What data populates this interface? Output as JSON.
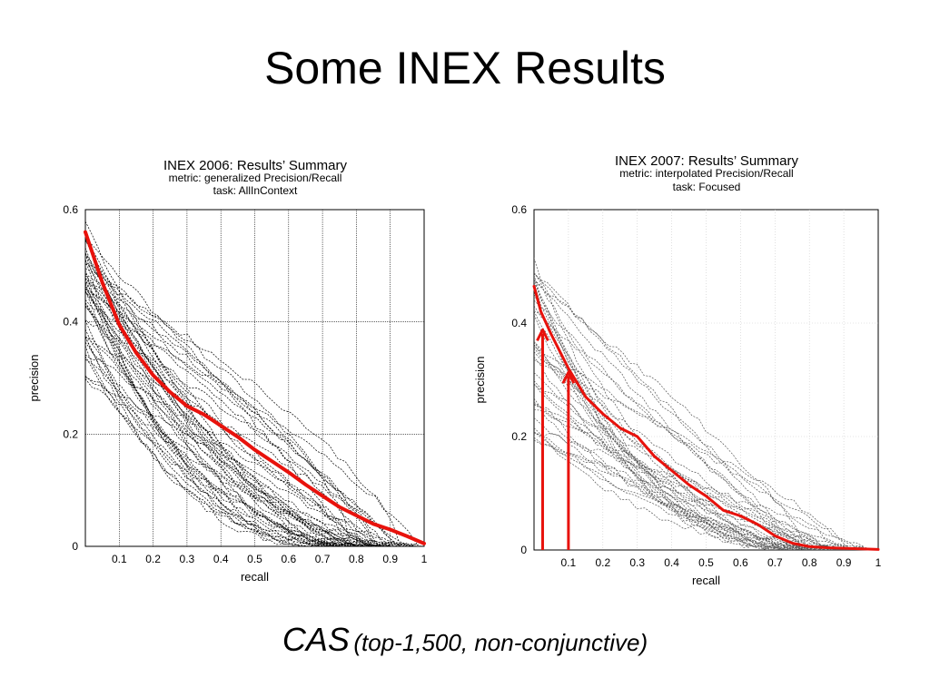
{
  "slide": {
    "title": "Some INEX Results",
    "caption_main": "CAS",
    "caption_sub": "(top-1,500, non-conjunctive)"
  },
  "chart_data": [
    {
      "type": "line",
      "title": "INEX 2006: Results’ Summary",
      "subtitle_lines": [
        "metric: generalized Precision/Recall",
        "task: AllInContext"
      ],
      "xlabel": "recall",
      "ylabel": "precision",
      "xlim": [
        0,
        1
      ],
      "ylim": [
        0,
        0.6
      ],
      "x_ticks": [
        0.1,
        0.2,
        0.3,
        0.4,
        0.5,
        0.6,
        0.7,
        0.8,
        0.9,
        1
      ],
      "x_tick_labels": [
        "0.1",
        "0.2",
        "0.3",
        "0.4",
        "0.5",
        "0.6",
        "0.7",
        "0.8",
        "0.9",
        "1"
      ],
      "y_ticks": [
        0,
        0.2,
        0.4,
        0.6
      ],
      "y_tick_labels": [
        "0",
        "0.2",
        "0.4",
        "0.6"
      ],
      "grid": "solid",
      "background_runs": {
        "count": 48,
        "color": "#000000",
        "style": "dotted"
      },
      "highlight": {
        "color": "#e8120c",
        "x": [
          0,
          0.05,
          0.1,
          0.15,
          0.2,
          0.25,
          0.3,
          0.35,
          0.4,
          0.45,
          0.5,
          0.55,
          0.6,
          0.65,
          0.7,
          0.75,
          0.8,
          0.85,
          0.9,
          0.95,
          1.0
        ],
        "y": [
          0.56,
          0.47,
          0.395,
          0.345,
          0.305,
          0.275,
          0.25,
          0.235,
          0.215,
          0.195,
          0.172,
          0.152,
          0.132,
          0.11,
          0.09,
          0.07,
          0.055,
          0.04,
          0.03,
          0.018,
          0.005
        ]
      },
      "arrows": []
    },
    {
      "type": "line",
      "title": "INEX 2007: Results’ Summary",
      "subtitle_lines": [
        "metric: interpolated Precision/Recall",
        "task: Focused"
      ],
      "xlabel": "recall",
      "ylabel": "precision",
      "xlim": [
        0,
        1
      ],
      "ylim": [
        0,
        0.6
      ],
      "x_ticks": [
        0.1,
        0.2,
        0.3,
        0.4,
        0.5,
        0.6,
        0.7,
        0.8,
        0.9,
        1
      ],
      "x_tick_labels": [
        "0.1",
        "0.2",
        "0.3",
        "0.4",
        "0.5",
        "0.6",
        "0.7",
        "0.8",
        "0.9",
        "1"
      ],
      "y_ticks": [
        0,
        0.2,
        0.4,
        0.6
      ],
      "y_tick_labels": [
        "0",
        "0.2",
        "0.4",
        "0.6"
      ],
      "grid": "faint",
      "background_runs": {
        "count": 40,
        "color": "#555555",
        "style": "dotted"
      },
      "highlight": {
        "color": "#e8120c",
        "x": [
          0,
          0.02,
          0.05,
          0.1,
          0.15,
          0.2,
          0.25,
          0.3,
          0.35,
          0.4,
          0.45,
          0.5,
          0.55,
          0.6,
          0.65,
          0.7,
          0.75,
          0.8,
          0.85,
          0.9,
          0.95,
          1.0
        ],
        "y": [
          0.465,
          0.42,
          0.38,
          0.32,
          0.27,
          0.24,
          0.215,
          0.2,
          0.165,
          0.14,
          0.115,
          0.095,
          0.07,
          0.06,
          0.045,
          0.025,
          0.012,
          0.006,
          0.004,
          0.003,
          0.002,
          0.001
        ]
      },
      "arrows": [
        {
          "x": 0.025,
          "y_top": 0.385
        },
        {
          "x": 0.1,
          "y_top": 0.31
        }
      ]
    }
  ]
}
